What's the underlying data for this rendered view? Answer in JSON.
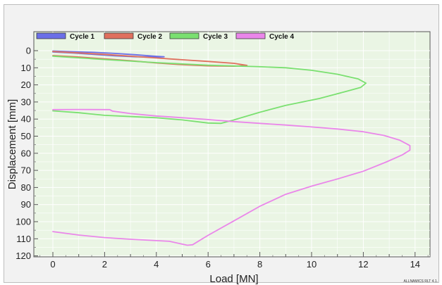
{
  "chart_data": {
    "type": "line",
    "xlabel": "Load [MN]",
    "ylabel": "Displacement [mm]",
    "xlim": [
      -0.8,
      14.5
    ],
    "ylim": [
      0,
      120
    ],
    "y_inverted": true,
    "x_ticks": [
      0,
      2,
      4,
      6,
      8,
      10,
      12,
      14
    ],
    "y_ticks": [
      0,
      10,
      20,
      30,
      40,
      50,
      60,
      70,
      80,
      90,
      100,
      110,
      120
    ],
    "grid": true,
    "legend_position": "top",
    "footer": "ALLNAMICS RLT 4.1.",
    "series": [
      {
        "name": "Cycle 1",
        "color": "#6b6fe8",
        "points": [
          [
            0,
            0.2
          ],
          [
            0.8,
            0.6
          ],
          [
            1.6,
            1.0
          ],
          [
            2.4,
            1.6
          ],
          [
            3.2,
            2.4
          ],
          [
            4.0,
            3.3
          ],
          [
            4.3,
            3.6
          ],
          [
            4.0,
            3.8
          ],
          [
            3.2,
            3.6
          ],
          [
            2.4,
            3.0
          ],
          [
            1.6,
            2.2
          ],
          [
            0.8,
            1.4
          ],
          [
            0,
            0.8
          ]
        ]
      },
      {
        "name": "Cycle 2",
        "color": "#e0705e",
        "points": [
          [
            0,
            0.5
          ],
          [
            1.0,
            1.3
          ],
          [
            2.0,
            2.2
          ],
          [
            3.0,
            3.2
          ],
          [
            4.0,
            4.3
          ],
          [
            5.0,
            5.3
          ],
          [
            6.0,
            6.3
          ],
          [
            7.0,
            7.4
          ],
          [
            7.5,
            8.6
          ],
          [
            7.0,
            9.1
          ],
          [
            6.0,
            8.9
          ],
          [
            5.0,
            8.2
          ],
          [
            4.0,
            7.2
          ],
          [
            3.0,
            5.9
          ],
          [
            2.0,
            4.8
          ],
          [
            1.0,
            3.7
          ],
          [
            0,
            2.9
          ]
        ]
      },
      {
        "name": "Cycle 3",
        "color": "#7ae070",
        "points": [
          [
            0,
            3.2
          ],
          [
            2.0,
            5.2
          ],
          [
            4.0,
            7.0
          ],
          [
            6.0,
            8.5
          ],
          [
            8.0,
            9.4
          ],
          [
            9.0,
            10.0
          ],
          [
            10.0,
            11.5
          ],
          [
            11.0,
            13.8
          ],
          [
            11.8,
            16.5
          ],
          [
            12.1,
            19.0
          ],
          [
            11.9,
            21.5
          ],
          [
            11.3,
            24.0
          ],
          [
            10.3,
            28.0
          ],
          [
            9.0,
            32.0
          ],
          [
            8.0,
            36.0
          ],
          [
            7.0,
            40.5
          ],
          [
            6.5,
            42.5
          ],
          [
            6.0,
            42.3
          ],
          [
            5.0,
            40.5
          ],
          [
            4.0,
            39.2
          ],
          [
            2.0,
            37.8
          ],
          [
            1.0,
            36.3
          ],
          [
            0,
            35.2
          ]
        ]
      },
      {
        "name": "Cycle 4",
        "color": "#ea86ea",
        "points": [
          [
            0,
            34.5
          ],
          [
            1.0,
            34.4
          ],
          [
            2.2,
            34.5
          ],
          [
            2.3,
            35.3
          ],
          [
            3.0,
            36.8
          ],
          [
            4.0,
            38.2
          ],
          [
            5.0,
            39.2
          ],
          [
            6.0,
            40.3
          ],
          [
            7.0,
            41.5
          ],
          [
            8.0,
            42.5
          ],
          [
            9.0,
            43.5
          ],
          [
            10.0,
            44.6
          ],
          [
            11.0,
            45.8
          ],
          [
            12.0,
            47.4
          ],
          [
            12.8,
            49.6
          ],
          [
            13.4,
            52.3
          ],
          [
            13.8,
            55.5
          ],
          [
            13.8,
            58.2
          ],
          [
            13.5,
            61.0
          ],
          [
            12.9,
            65.0
          ],
          [
            12.0,
            70.5
          ],
          [
            11.0,
            75.0
          ],
          [
            10.0,
            79.2
          ],
          [
            9.0,
            84.0
          ],
          [
            8.0,
            91.0
          ],
          [
            7.0,
            99.5
          ],
          [
            6.0,
            108.0
          ],
          [
            5.4,
            113.5
          ],
          [
            5.2,
            113.8
          ],
          [
            4.5,
            111.5
          ],
          [
            3.0,
            110.3
          ],
          [
            2.0,
            109.3
          ],
          [
            1.0,
            107.8
          ],
          [
            0,
            105.8
          ]
        ]
      }
    ]
  }
}
